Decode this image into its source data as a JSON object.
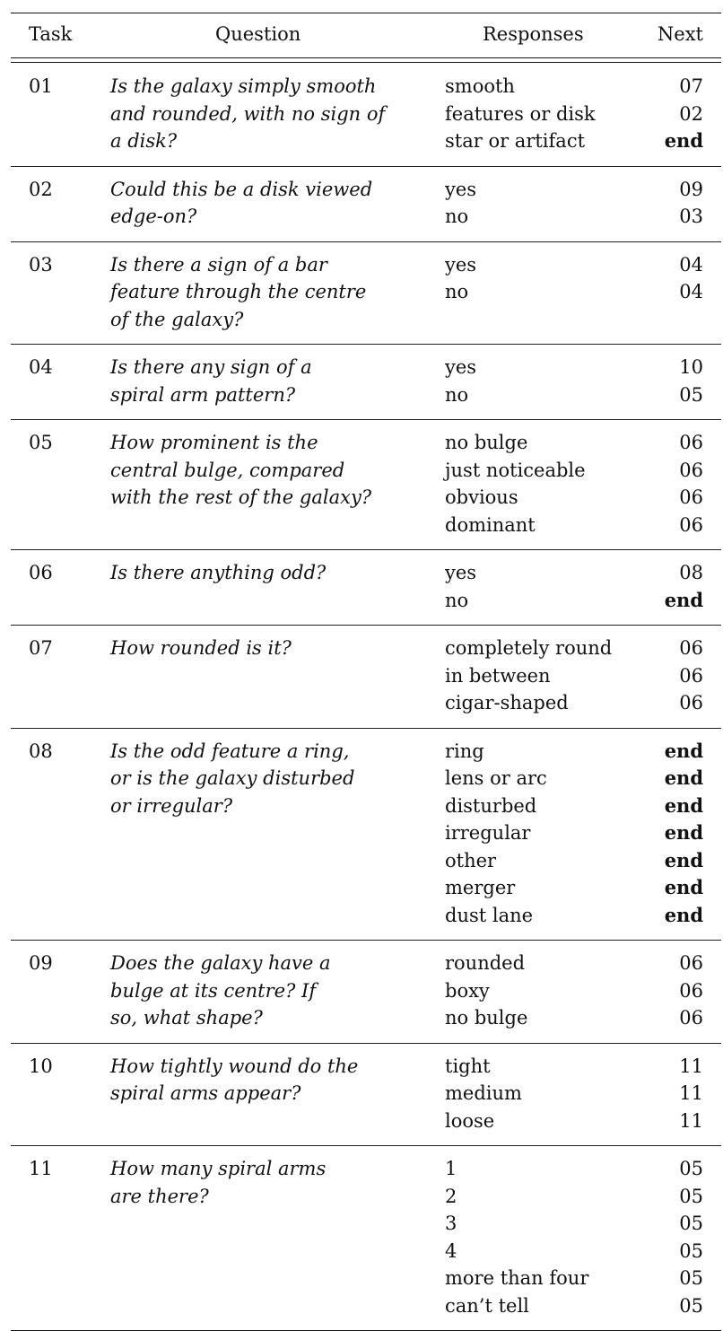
{
  "headers": {
    "task": "Task",
    "question": "Question",
    "responses": "Responses",
    "next": "Next"
  },
  "rows": [
    {
      "task": "01",
      "question": [
        "Is the galaxy simply smooth",
        "and rounded, with no sign of",
        "a disk?"
      ],
      "responses": [
        "smooth",
        "features or disk",
        "star or artifact"
      ],
      "next": [
        "07",
        "02",
        "end"
      ]
    },
    {
      "task": "02",
      "question": [
        "Could this be a disk viewed",
        "edge-on?"
      ],
      "responses": [
        "yes",
        "no"
      ],
      "next": [
        "09",
        "03"
      ]
    },
    {
      "task": "03",
      "question": [
        "Is there a sign of a bar",
        "feature through the centre",
        "of the galaxy?"
      ],
      "responses": [
        "yes",
        "no"
      ],
      "next": [
        "04",
        "04"
      ]
    },
    {
      "task": "04",
      "question": [
        "Is there any sign of a",
        "spiral arm pattern?"
      ],
      "responses": [
        "yes",
        "no"
      ],
      "next": [
        "10",
        "05"
      ]
    },
    {
      "task": "05",
      "question": [
        "How prominent is the",
        "central bulge, compared",
        "with the rest of the galaxy?"
      ],
      "responses": [
        "no bulge",
        "just noticeable",
        "obvious",
        "dominant"
      ],
      "next": [
        "06",
        "06",
        "06",
        "06"
      ]
    },
    {
      "task": "06",
      "question": [
        "Is there anything odd?"
      ],
      "responses": [
        "yes",
        "no"
      ],
      "next": [
        "08",
        "end"
      ]
    },
    {
      "task": "07",
      "question": [
        "How rounded is it?"
      ],
      "responses": [
        "completely round",
        "in between",
        "cigar-shaped"
      ],
      "next": [
        "06",
        "06",
        "06"
      ]
    },
    {
      "task": "08",
      "question": [
        "Is the odd feature a ring,",
        "or is the galaxy disturbed",
        "or irregular?"
      ],
      "responses": [
        "ring",
        "lens or arc",
        "disturbed",
        "irregular",
        "other",
        "merger",
        "dust lane"
      ],
      "next": [
        "end",
        "end",
        "end",
        "end",
        "end",
        "end",
        "end"
      ]
    },
    {
      "task": "09",
      "question": [
        "Does the galaxy have a",
        "bulge at its centre? If",
        "so, what shape?"
      ],
      "responses": [
        "rounded",
        "boxy",
        "no bulge"
      ],
      "next": [
        "06",
        "06",
        "06"
      ]
    },
    {
      "task": "10",
      "question": [
        "How tightly wound do the",
        "spiral arms appear?"
      ],
      "responses": [
        "tight",
        "medium",
        "loose"
      ],
      "next": [
        "11",
        "11",
        "11"
      ]
    },
    {
      "task": "11",
      "question": [
        "How many spiral arms",
        "are there?"
      ],
      "responses": [
        "1",
        "2",
        "3",
        "4",
        "more than four",
        "can’t tell"
      ],
      "next": [
        "05",
        "05",
        "05",
        "05",
        "05",
        "05"
      ]
    }
  ]
}
